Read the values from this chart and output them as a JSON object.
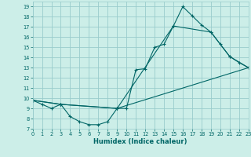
{
  "background_color": "#cceee8",
  "grid_color": "#99cccc",
  "line_color": "#006666",
  "line1_x": [
    0,
    1,
    2,
    3,
    4,
    5,
    6,
    7,
    8,
    9,
    10,
    11,
    12,
    13,
    14,
    15,
    16,
    17,
    18,
    19,
    20,
    21,
    22,
    23
  ],
  "line1_y": [
    9.8,
    9.4,
    9.0,
    9.4,
    8.2,
    7.7,
    7.4,
    7.4,
    7.7,
    9.0,
    9.0,
    12.8,
    12.9,
    15.0,
    15.3,
    17.1,
    19.0,
    18.1,
    17.2,
    16.5,
    15.3,
    14.1,
    13.5,
    13.0
  ],
  "line2_x": [
    0,
    3,
    9,
    15,
    19,
    21,
    23
  ],
  "line2_y": [
    9.8,
    9.4,
    9.0,
    17.1,
    16.5,
    14.1,
    13.0
  ],
  "line3_x": [
    0,
    3,
    9,
    23
  ],
  "line3_y": [
    9.8,
    9.4,
    9.0,
    13.0
  ],
  "xlim": [
    0,
    23
  ],
  "ylim": [
    7,
    19.5
  ],
  "yticks": [
    7,
    8,
    9,
    10,
    11,
    12,
    13,
    14,
    15,
    16,
    17,
    18,
    19
  ],
  "xtick_labels": [
    "0",
    "1",
    "2",
    "3",
    "4",
    "5",
    "6",
    "7",
    "8",
    "9",
    "10",
    "11",
    "12",
    "13",
    "14",
    "15",
    "16",
    "17",
    "18",
    "19",
    "20",
    "21",
    "22",
    "23"
  ],
  "xlabel": "Humidex (Indice chaleur)",
  "xlabel_fontsize": 6.0,
  "tick_fontsize": 4.8,
  "marker_size": 2.5,
  "line_width": 0.8
}
